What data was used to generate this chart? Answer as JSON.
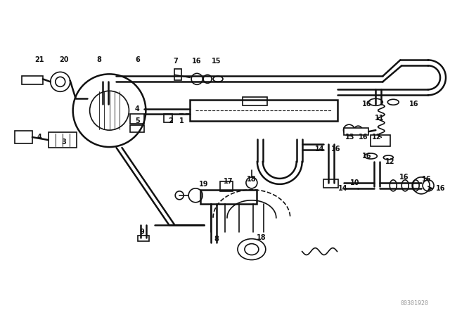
{
  "bg": "#ffffff",
  "lc": "#111111",
  "tc": "#111111",
  "watermark": "00301920",
  "fw": 6.4,
  "fh": 4.48,
  "dpi": 100,
  "labels": [
    [
      "21",
      55,
      85
    ],
    [
      "20",
      90,
      85
    ],
    [
      "8",
      140,
      85
    ],
    [
      "6",
      195,
      85
    ],
    [
      "7",
      250,
      87
    ],
    [
      "16",
      280,
      87
    ],
    [
      "15",
      308,
      87
    ],
    [
      "4",
      195,
      155
    ],
    [
      "5",
      195,
      172
    ],
    [
      "2",
      242,
      172
    ],
    [
      "1",
      258,
      172
    ],
    [
      "4",
      55,
      195
    ],
    [
      "3",
      90,
      202
    ],
    [
      "19",
      290,
      262
    ],
    [
      "17",
      325,
      258
    ],
    [
      "18",
      358,
      255
    ],
    [
      "14",
      455,
      212
    ],
    [
      "16",
      478,
      212
    ],
    [
      "13",
      498,
      195
    ],
    [
      "16",
      517,
      195
    ],
    [
      "12",
      536,
      195
    ],
    [
      "11",
      540,
      168
    ],
    [
      "16",
      522,
      148
    ],
    [
      "16",
      590,
      148
    ],
    [
      "16",
      522,
      222
    ],
    [
      "12",
      555,
      230
    ],
    [
      "10",
      505,
      260
    ],
    [
      "16",
      575,
      252
    ],
    [
      "16",
      608,
      255
    ],
    [
      "16",
      628,
      268
    ],
    [
      "9",
      202,
      330
    ],
    [
      "8",
      308,
      340
    ],
    [
      "18",
      372,
      338
    ],
    [
      "14",
      488,
      268
    ]
  ]
}
